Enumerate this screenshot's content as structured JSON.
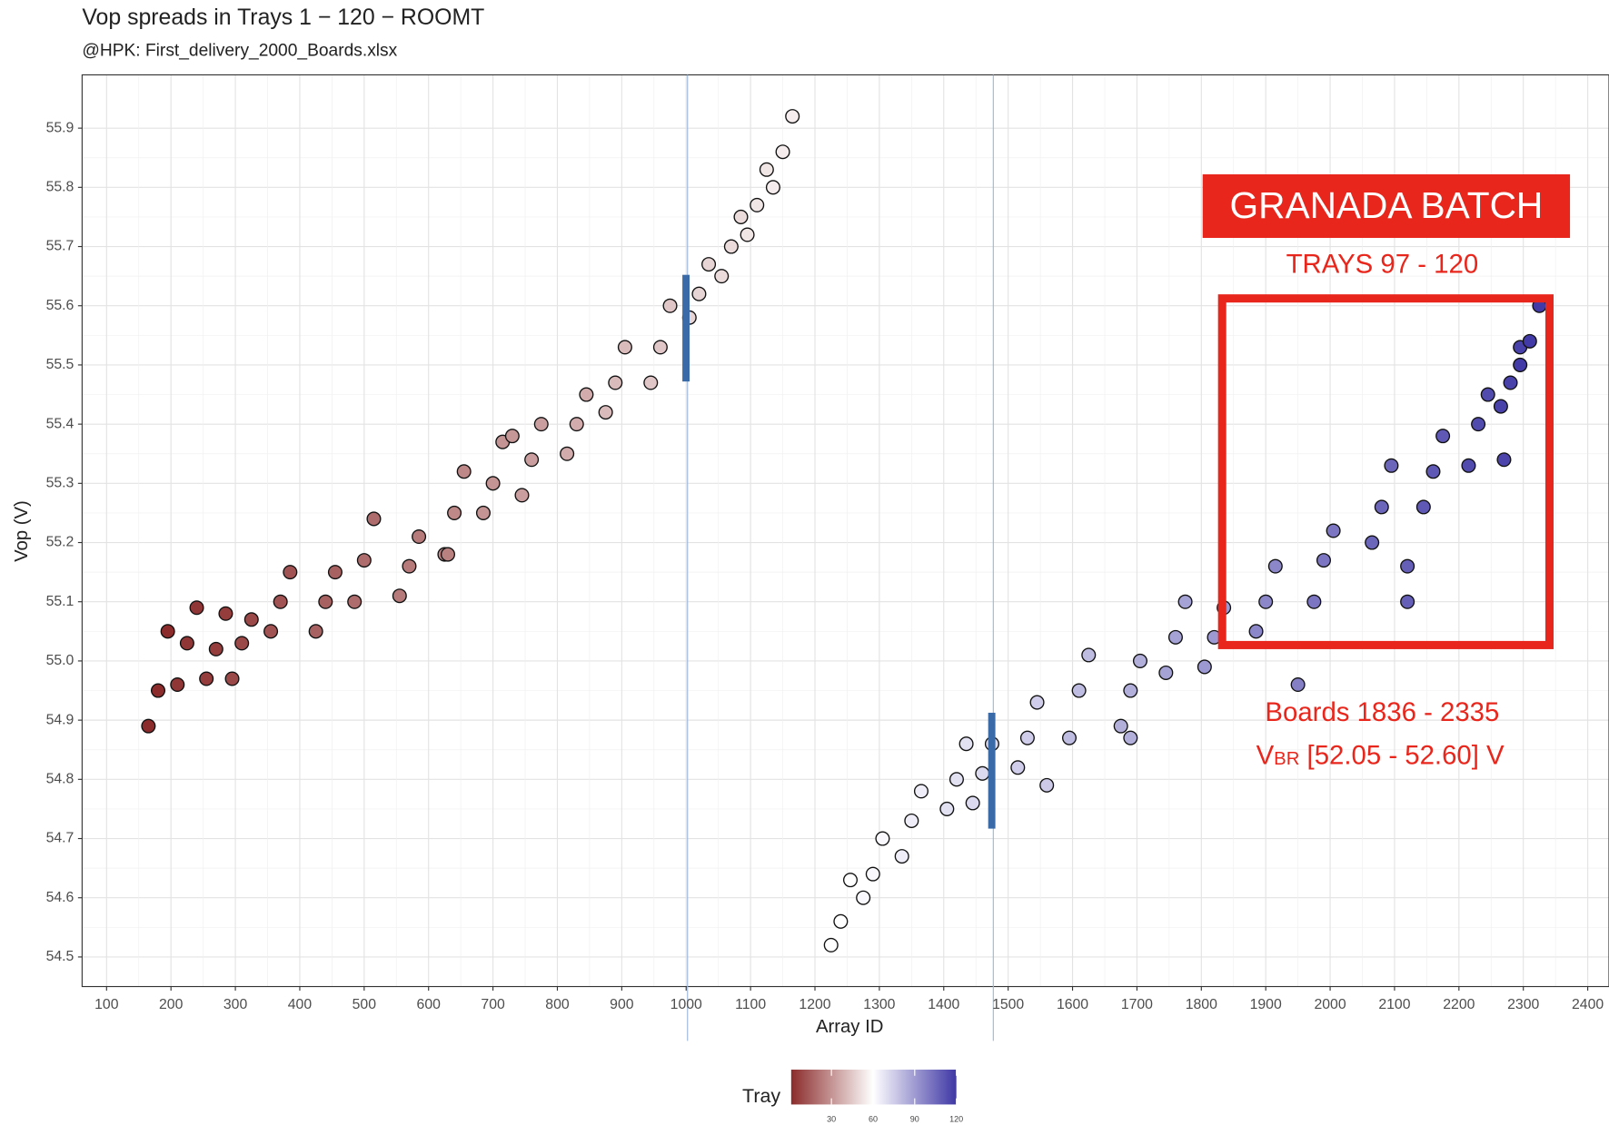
{
  "chart_data": {
    "type": "scatter",
    "title": "Vop spreads in Trays 1 − 120  −  ROOMT",
    "subtitle": "@HPK: First_delivery_2000_Boards.xlsx",
    "x_label": "Array ID",
    "y_label": "Vop (V)",
    "xlim": [
      62,
      2433
    ],
    "ylim": [
      54.45,
      55.99
    ],
    "xticks": [
      100,
      200,
      300,
      400,
      500,
      600,
      700,
      800,
      900,
      1000,
      1100,
      1200,
      1300,
      1400,
      1500,
      1600,
      1700,
      1800,
      1900,
      2000,
      2100,
      2200,
      2300,
      2400
    ],
    "yticks": [
      54.5,
      54.6,
      54.7,
      54.8,
      54.9,
      {
        "value": 55,
        "label": "55.0"
      },
      55.1,
      55.2,
      55.3,
      55.4,
      55.5,
      55.6,
      55.7,
      55.8,
      55.9
    ],
    "grid": true,
    "x": [
      165,
      180,
      195,
      210,
      225,
      240,
      255,
      270,
      285,
      295,
      310,
      325,
      355,
      370,
      385,
      425,
      440,
      455,
      485,
      500,
      515,
      555,
      570,
      585,
      625,
      640,
      655,
      685,
      700,
      715,
      745,
      760,
      775,
      815,
      830,
      845,
      875,
      890,
      905,
      945,
      960,
      975,
      1005,
      1020,
      1035,
      1055,
      1070,
      1085,
      1095,
      1110,
      1125,
      1135,
      1150,
      1165,
      1225,
      1240,
      1255,
      1275,
      1290,
      1305,
      1335,
      1350,
      1365,
      1405,
      1420,
      1435,
      1445,
      1460,
      1475,
      1515,
      1530,
      1545,
      1595,
      1610,
      1625,
      1675,
      1690,
      1705,
      1745,
      1760,
      1775,
      1805,
      1820,
      1835,
      1885,
      1900,
      1915,
      1975,
      1990,
      2005,
      2065,
      2080,
      2095,
      2145,
      2160,
      2175,
      2215,
      2230,
      2245,
      2265,
      2280,
      2295,
      2295,
      2310,
      2325,
      730,
      630,
      1950,
      2120,
      2120,
      1690,
      1560,
      2270
    ],
    "values": [
      54.89,
      54.95,
      55.05,
      54.96,
      55.03,
      55.09,
      54.97,
      55.02,
      55.08,
      54.97,
      55.03,
      55.07,
      55.05,
      55.1,
      55.15,
      55.05,
      55.1,
      55.15,
      55.1,
      55.17,
      55.24,
      55.11,
      55.16,
      55.21,
      55.18,
      55.25,
      55.32,
      55.25,
      55.3,
      55.37,
      55.28,
      55.34,
      55.4,
      55.35,
      55.4,
      55.45,
      55.42,
      55.47,
      55.53,
      55.47,
      55.53,
      55.6,
      55.58,
      55.62,
      55.67,
      55.65,
      55.7,
      55.75,
      55.72,
      55.77,
      55.83,
      55.8,
      55.86,
      55.92,
      54.52,
      54.56,
      54.63,
      54.6,
      54.64,
      54.7,
      54.67,
      54.73,
      54.78,
      54.75,
      54.8,
      54.86,
      54.76,
      54.81,
      54.86,
      54.82,
      54.87,
      54.93,
      54.87,
      54.95,
      55.01,
      54.89,
      54.95,
      55.0,
      54.98,
      55.04,
      55.1,
      54.99,
      55.04,
      55.09,
      55.05,
      55.1,
      55.16,
      55.1,
      55.17,
      55.22,
      55.2,
      55.26,
      55.33,
      55.26,
      55.32,
      55.38,
      55.33,
      55.4,
      55.45,
      55.43,
      55.47,
      55.53,
      55.5,
      55.54,
      55.6,
      55.38,
      55.18,
      54.96,
      55.1,
      55.16,
      54.87,
      54.79,
      55.34
    ],
    "tray": [
      1,
      1,
      1,
      4,
      4,
      4,
      6,
      6,
      6,
      9,
      9,
      9,
      12,
      12,
      12,
      16,
      16,
      16,
      19,
      19,
      19,
      23,
      23,
      23,
      27,
      27,
      27,
      30,
      30,
      30,
      33,
      33,
      33,
      37,
      37,
      37,
      41,
      41,
      41,
      44,
      44,
      44,
      48,
      48,
      48,
      50,
      50,
      50,
      53,
      53,
      53,
      55,
      55,
      55,
      60,
      60,
      60,
      62,
      62,
      62,
      65,
      65,
      65,
      69,
      69,
      69,
      71,
      71,
      71,
      75,
      75,
      75,
      80,
      80,
      80,
      84,
      84,
      84,
      88,
      88,
      88,
      91,
      91,
      91,
      96,
      96,
      96,
      101,
      101,
      101,
      106,
      106,
      106,
      110,
      110,
      110,
      114,
      114,
      114,
      117,
      117,
      117,
      119,
      119,
      119,
      31,
      25,
      98,
      108,
      108,
      84,
      76,
      116
    ],
    "color_scale": {
      "title": "Tray",
      "low": "#8b2b2b",
      "mid": "#ffffff",
      "high": "#3f37a5",
      "limits": [
        1,
        120
      ],
      "midpoint": 60,
      "ticks": [
        30,
        60,
        90,
        120
      ]
    },
    "annotations": {
      "batch": "GRANADA BATCH",
      "trays": "TRAYS 97 - 120",
      "boards": "Boards 1836 - 2335",
      "vbr": {
        "symbol": "V",
        "subscript": "BR",
        "text": " [52.05 - 52.60] V"
      }
    }
  }
}
